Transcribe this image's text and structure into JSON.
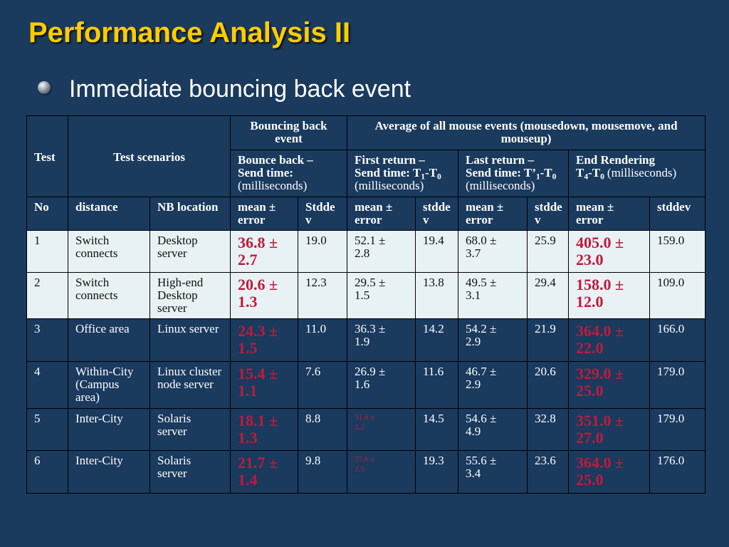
{
  "slide": {
    "title": "Performance Analysis II",
    "bullet": "Immediate bouncing back event",
    "bullet_icon": "sphere-bullet-icon"
  },
  "colors": {
    "background": "#1a3a5e",
    "title": "#ffcc00",
    "text": "#ffffff",
    "highlight_row": "#e8f1f4",
    "highlight_row_text": "#111111",
    "emphasis": "#c01a3c",
    "grid": "#000000"
  },
  "table": {
    "header": {
      "test": "Test",
      "scenarios": "Test scenarios",
      "bouncing_back": "Bouncing back\nevent",
      "average": "Average of all mouse events (mousedown, mousemove, and\nmouseup)",
      "bounce_back": {
        "title": "Bounce back –",
        "line2": "Send time:",
        "unit": "(milliseconds)"
      },
      "first_return": {
        "title": "First return –",
        "prefix": "Send time: T",
        "sub_a": "1",
        "mid": "-T",
        "sub_b": "0",
        "unit": "(milliseconds)"
      },
      "last_return": {
        "title": "Last return –",
        "prefix": "Send time: T’",
        "sub_a": "1",
        "mid": "-T",
        "sub_b": "0",
        "unit": "(milliseconds)"
      },
      "end_rendering": {
        "title": "End Rendering",
        "prefix": "T",
        "sub_a": "4",
        "mid": "-T",
        "sub_b": "0",
        "unit": "(milliseconds)"
      },
      "columns": [
        "No",
        "distance",
        "NB location",
        "mean ±\nerror",
        "Stdde\nv",
        "mean ±\nerror",
        "stdde\nv",
        "mean ±\nerror",
        "stdde\nv",
        "mean ±\nerror",
        "stddev"
      ]
    },
    "rows": [
      {
        "highlight": true,
        "cells": [
          "1",
          "Switch\nconnects",
          "Desktop\nserver",
          "36.8 ±\n2.7",
          "19.0",
          "52.1 ±\n2.8",
          "19.4",
          "68.0 ±\n3.7",
          "25.9",
          "405.0 ±\n23.0",
          "159.0"
        ]
      },
      {
        "highlight": true,
        "cells": [
          "2",
          "Switch\nconnects",
          "High-end\nDesktop\nserver",
          "20.6 ±\n1.3",
          "12.3",
          "29.5 ±\n1.5",
          "13.8",
          "49.5 ±\n3.1",
          "29.4",
          "158.0 ±\n12.0",
          "109.0"
        ]
      },
      {
        "highlight": false,
        "cells": [
          "3",
          "Office area",
          "Linux server",
          "24.3 ±\n1.5",
          "11.0",
          "36.3 ±\n1.9",
          "14.2",
          "54.2 ±\n2.9",
          "21.9",
          "364.0 ±\n22.0",
          "166.0"
        ]
      },
      {
        "highlight": false,
        "cells": [
          "4",
          "Within-City\n(Campus\narea)",
          "Linux cluster\nnode server",
          "15.4 ±\n1.1",
          "7.6",
          "26.9 ±\n1.6",
          "11.6",
          "46.7 ±\n2.9",
          "20.6",
          "329.0 ±\n25.0",
          "179.0"
        ]
      },
      {
        "highlight": false,
        "cells": [
          "5",
          "Inter-City",
          "Solaris\nserver",
          "18.1 ±\n1.3",
          "8.8",
          "31.8 ±\n2.2",
          "14.5",
          "54.6 ±\n4.9",
          "32.8",
          "351.0 ±\n27.0",
          "179.0"
        ]
      },
      {
        "highlight": false,
        "cells": [
          "6",
          "Inter-City",
          "Solaris\nserver",
          "21.7 ±\n1.4",
          "9.8",
          "37.6 ±\n2.5",
          "19.3",
          "55.6 ±\n3.4",
          "23.6",
          "364.0 ±\n25.0",
          "176.0"
        ]
      }
    ]
  }
}
